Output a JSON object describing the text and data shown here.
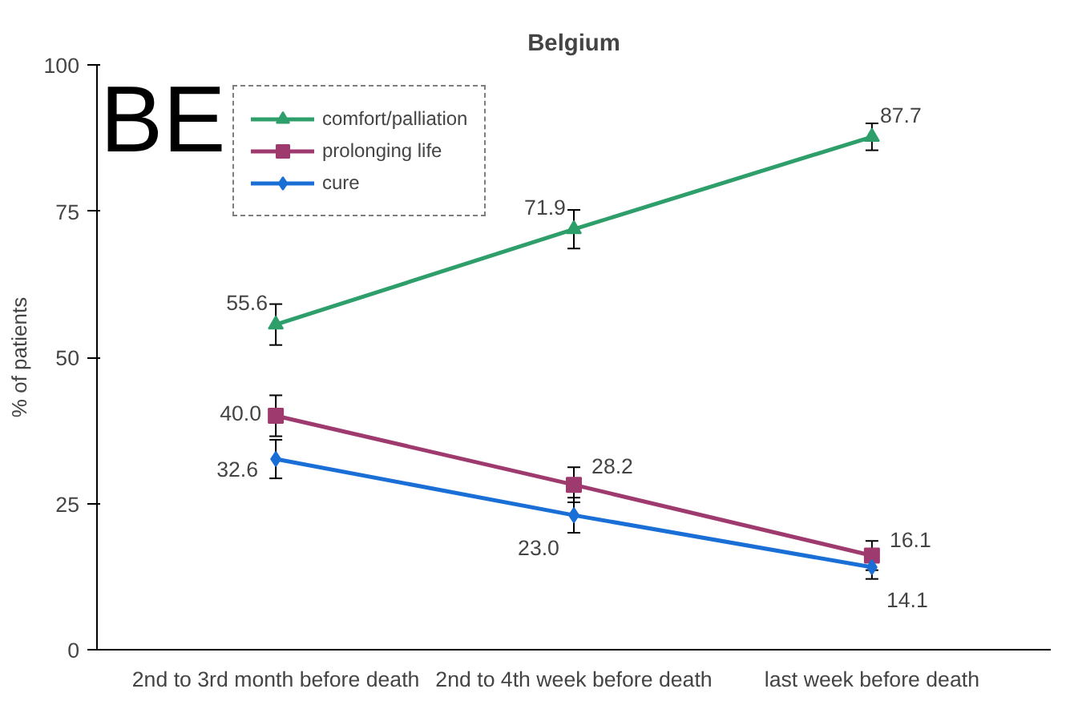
{
  "chart_data": {
    "type": "line",
    "title": "Belgium",
    "ylabel": "% of patients",
    "categories": [
      "2nd to 3rd month before death",
      "2nd to 4th week before death",
      "last week before death"
    ],
    "series": [
      {
        "name": "comfort/palliation",
        "color": "#2e9e6b",
        "marker": "triangle",
        "values": [
          55.6,
          71.9,
          87.7
        ],
        "value_labels": [
          "55.6",
          "71.9",
          "87.7"
        ],
        "errors": [
          3.5,
          3.3,
          2.3
        ]
      },
      {
        "name": "prolonging life",
        "color": "#9e3a6e",
        "marker": "square",
        "values": [
          40.0,
          28.2,
          16.1
        ],
        "value_labels": [
          "40.0",
          "28.2",
          "16.1"
        ],
        "errors": [
          3.5,
          3.0,
          2.5
        ]
      },
      {
        "name": "cure",
        "color": "#1a6fd6",
        "marker": "diamond",
        "values": [
          32.6,
          23.0,
          14.1
        ],
        "value_labels": [
          "32.6",
          "23.0",
          "14.1"
        ],
        "errors": [
          3.3,
          3.0,
          2.0
        ]
      }
    ],
    "ylim": [
      0,
      100
    ],
    "yticks": [
      0,
      25,
      50,
      75,
      100
    ],
    "grid": false,
    "legend": "top left",
    "data_labels": true,
    "annotations": [
      "BE"
    ]
  }
}
